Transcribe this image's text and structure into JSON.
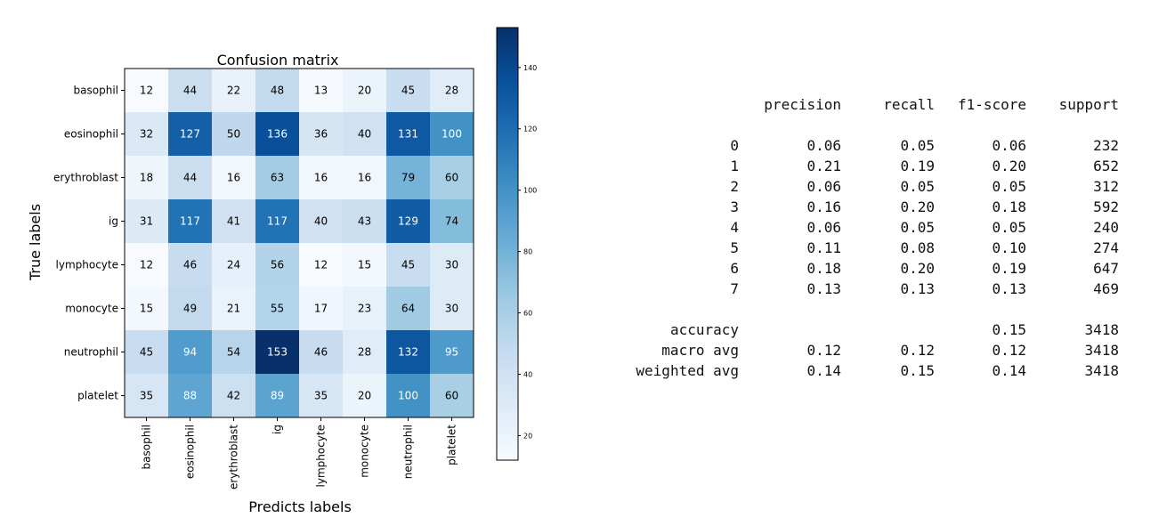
{
  "chart_data": {
    "type": "heatmap",
    "title": "Confusion matrix",
    "xlabel": "Predicts labels",
    "ylabel": "True labels",
    "x_categories": [
      "basophil",
      "eosinophil",
      "erythroblast",
      "ig",
      "lymphocyte",
      "monocyte",
      "neutrophil",
      "platelet"
    ],
    "y_categories": [
      "basophil",
      "eosinophil",
      "erythroblast",
      "ig",
      "lymphocyte",
      "monocyte",
      "neutrophil",
      "platelet"
    ],
    "matrix": [
      [
        12,
        44,
        22,
        48,
        13,
        20,
        45,
        28
      ],
      [
        32,
        127,
        50,
        136,
        36,
        40,
        131,
        100
      ],
      [
        18,
        44,
        16,
        63,
        16,
        16,
        79,
        60
      ],
      [
        31,
        117,
        41,
        117,
        40,
        43,
        129,
        74
      ],
      [
        12,
        46,
        24,
        56,
        12,
        15,
        45,
        30
      ],
      [
        15,
        49,
        21,
        55,
        17,
        23,
        64,
        30
      ],
      [
        45,
        94,
        54,
        153,
        46,
        28,
        132,
        95
      ],
      [
        35,
        88,
        42,
        89,
        35,
        20,
        100,
        60
      ]
    ],
    "colormap": "Blues",
    "colorbar": {
      "ticks": [
        20,
        40,
        60,
        80,
        100,
        120,
        140
      ],
      "range": [
        12,
        153
      ]
    }
  },
  "report": {
    "headers": [
      "precision",
      "recall",
      "f1-score",
      "support"
    ],
    "classes": [
      {
        "label": "0",
        "precision": "0.06",
        "recall": "0.05",
        "f1": "0.06",
        "support": "232"
      },
      {
        "label": "1",
        "precision": "0.21",
        "recall": "0.19",
        "f1": "0.20",
        "support": "652"
      },
      {
        "label": "2",
        "precision": "0.06",
        "recall": "0.05",
        "f1": "0.05",
        "support": "312"
      },
      {
        "label": "3",
        "precision": "0.16",
        "recall": "0.20",
        "f1": "0.18",
        "support": "592"
      },
      {
        "label": "4",
        "precision": "0.06",
        "recall": "0.05",
        "f1": "0.05",
        "support": "240"
      },
      {
        "label": "5",
        "precision": "0.11",
        "recall": "0.08",
        "f1": "0.10",
        "support": "274"
      },
      {
        "label": "6",
        "precision": "0.18",
        "recall": "0.20",
        "f1": "0.19",
        "support": "647"
      },
      {
        "label": "7",
        "precision": "0.13",
        "recall": "0.13",
        "f1": "0.13",
        "support": "469"
      }
    ],
    "summary": [
      {
        "label": "accuracy",
        "precision": "",
        "recall": "",
        "f1": "0.15",
        "support": "3418"
      },
      {
        "label": "macro avg",
        "precision": "0.12",
        "recall": "0.12",
        "f1": "0.12",
        "support": "3418"
      },
      {
        "label": "weighted avg",
        "precision": "0.14",
        "recall": "0.15",
        "f1": "0.14",
        "support": "3418"
      }
    ]
  }
}
